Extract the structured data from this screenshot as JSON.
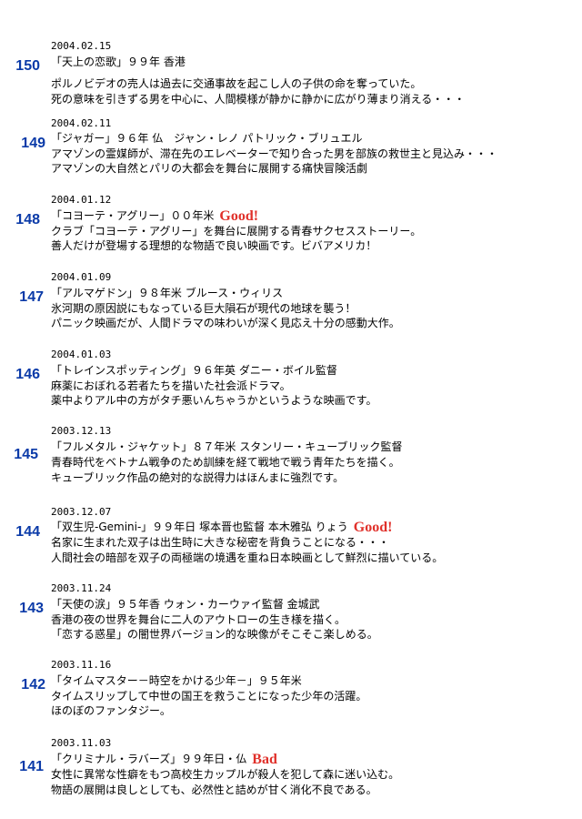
{
  "entries": [
    {
      "num": "150",
      "date": "2004.02.15",
      "title": "「天上の恋歌」９９年 香港",
      "rating": "",
      "lines": [
        "ポルノビデオの売人は過去に交通事故を起こし人の子供の命を奪っていた。",
        "死の意味を引きずる男を中心に、人間模様が静かに静かに広がり薄まり消える・・・"
      ]
    },
    {
      "num": "149",
      "date": "2004.02.11",
      "title": "「ジャガー」９６年 仏　ジャン・レノ パトリック・ブリュエル",
      "rating": "",
      "lines": [
        "アマゾンの霊媒師が、滞在先のエレベーターで知り合った男を部族の救世主と見込み・・・",
        "アマゾンの大自然とパリの大都会を舞台に展開する痛快冒険活劇"
      ]
    },
    {
      "num": "148",
      "date": "2004.01.12",
      "title": "「コヨーテ・アグリー」００年米",
      "rating": "Good!",
      "lines": [
        "クラブ「コヨーテ・アグリー」を舞台に展開する青春サクセスストーリー。",
        "善人だけが登場する理想的な物語で良い映画です。ビバアメリカ！"
      ]
    },
    {
      "num": "147",
      "date": "2004.01.09",
      "title": "「アルマゲドン」９８年米 ブルース・ウィリス",
      "rating": "",
      "lines": [
        "氷河期の原因説にもなっている巨大隕石が現代の地球を襲う！",
        "パニック映画だが、人間ドラマの味わいが深く見応え十分の感動大作。"
      ]
    },
    {
      "num": "146",
      "date": "2004.01.03",
      "title": "「トレインスポッティング」９６年英 ダニー・ボイル監督",
      "rating": "",
      "lines": [
        "麻薬におぼれる若者たちを描いた社会派ドラマ。",
        "薬中よりアル中の方がタチ悪いんちゃうかというような映画です。"
      ]
    },
    {
      "num": "145",
      "date": "2003.12.13",
      "title": "「フルメタル・ジャケット」８７年米 スタンリー・キューブリック監督",
      "rating": "",
      "lines": [
        "青春時代をベトナム戦争のため訓練を経て戦地で戦う青年たちを描く。",
        "キューブリック作品の絶対的な説得力はほんまに強烈です。"
      ]
    },
    {
      "num": "144",
      "date": "2003.12.07",
      "title": "「双生児-Gemini-」９９年日 塚本晋也監督 本木雅弘 りょう",
      "rating": "Good!",
      "lines": [
        "名家に生まれた双子は出生時に大きな秘密を背負うことになる・・・",
        "人間社会の暗部を双子の両極端の境遇を重ね日本映画として鮮烈に描いている。"
      ]
    },
    {
      "num": "143",
      "date": "2003.11.24",
      "title": "「天使の涙」９５年香 ウォン・カーウァイ監督 金城武",
      "rating": "",
      "lines": [
        "香港の夜の世界を舞台に二人のアウトローの生き様を描く。",
        "「恋する惑星」の闇世界バージョン的な映像がそこそこ楽しめる。"
      ]
    },
    {
      "num": "142",
      "date": "2003.11.16",
      "title": "「タイムマスター－時空をかける少年－」９５年米",
      "rating": "",
      "lines": [
        "タイムスリップして中世の国王を救うことになった少年の活躍。",
        "ほのぼのファンタジー。"
      ]
    },
    {
      "num": "141",
      "date": "2003.11.03",
      "title": "「クリミナル・ラバーズ」９９年日・仏",
      "rating": "Bad",
      "lines": [
        "女性に異常な性癖をもつ高校生カップルが殺人を犯して森に迷い込む。",
        "物語の展開は良しとしても、必然性と詰めが甘く消化不良である。"
      ]
    }
  ]
}
